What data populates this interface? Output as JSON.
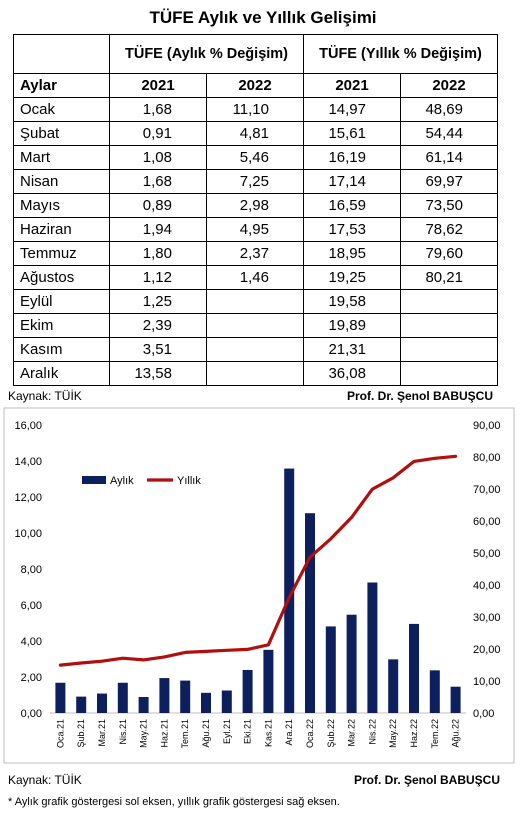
{
  "table": {
    "title": "TÜFE Aylık ve Yıllık Gelişimi",
    "group_monthly": "TÜFE (Aylık % Değişim)",
    "group_annual": "TÜFE (Yıllık % Değişim)",
    "col_months": "Aylar",
    "years": [
      "2021",
      "2022",
      "2021",
      "2022"
    ],
    "rows": [
      {
        "month": "Ocak",
        "m2021": "1,68",
        "m2022": "11,10",
        "y2021": "14,97",
        "y2022": "48,69"
      },
      {
        "month": "Şubat",
        "m2021": "0,91",
        "m2022": "4,81",
        "y2021": "15,61",
        "y2022": "54,44"
      },
      {
        "month": "Mart",
        "m2021": "1,08",
        "m2022": "5,46",
        "y2021": "16,19",
        "y2022": "61,14"
      },
      {
        "month": "Nisan",
        "m2021": "1,68",
        "m2022": "7,25",
        "y2021": "17,14",
        "y2022": "69,97"
      },
      {
        "month": "Mayıs",
        "m2021": "0,89",
        "m2022": "2,98",
        "y2021": "16,59",
        "y2022": "73,50"
      },
      {
        "month": "Haziran",
        "m2021": "1,94",
        "m2022": "4,95",
        "y2021": "17,53",
        "y2022": "78,62"
      },
      {
        "month": "Temmuz",
        "m2021": "1,80",
        "m2022": "2,37",
        "y2021": "18,95",
        "y2022": "79,60"
      },
      {
        "month": "Ağustos",
        "m2021": "1,12",
        "m2022": "1,46",
        "y2021": "19,25",
        "y2022": "80,21"
      },
      {
        "month": "Eylül",
        "m2021": "1,25",
        "m2022": "",
        "y2021": "19,58",
        "y2022": ""
      },
      {
        "month": "Ekim",
        "m2021": "2,39",
        "m2022": "",
        "y2021": "19,89",
        "y2022": ""
      },
      {
        "month": "Kasım",
        "m2021": "3,51",
        "m2022": "",
        "y2021": "21,31",
        "y2022": ""
      },
      {
        "month": "Aralık",
        "m2021": "13,58",
        "m2022": "",
        "y2021": "36,08",
        "y2022": ""
      }
    ]
  },
  "source_top": {
    "left": "Kaynak: TÜİK",
    "right": "Prof. Dr. Şenol BABUŞCU"
  },
  "source_bottom": {
    "left": "Kaynak: TÜİK",
    "right": "Prof. Dr. Şenol BABUŞCU"
  },
  "footnote": "* Aylık grafik göstergesi sol eksen, yıllık grafik göstergesi sağ eksen.",
  "chart_data": {
    "type": "bar",
    "categories": [
      "Oca.21",
      "Şub.21",
      "Mar.21",
      "Nis.21",
      "May.21",
      "Haz.21",
      "Tem.21",
      "Ağu.21",
      "Eyl.21",
      "Eki.21",
      "Kas.21",
      "Ara.21",
      "Oca.22",
      "Şub.22",
      "Mar.22",
      "Nis.22",
      "May.22",
      "Haz.22",
      "Tem.22",
      "Ağu.22"
    ],
    "series": [
      {
        "name": "Aylık",
        "type": "bar",
        "axis": "left",
        "color": "#0d1f5c",
        "values": [
          1.68,
          0.91,
          1.08,
          1.68,
          0.89,
          1.94,
          1.8,
          1.12,
          1.25,
          2.39,
          3.51,
          13.58,
          11.1,
          4.81,
          5.46,
          7.25,
          2.98,
          4.95,
          2.37,
          1.46
        ]
      },
      {
        "name": "Yıllık",
        "type": "line",
        "axis": "right",
        "color": "#b20e0e",
        "values": [
          14.97,
          15.61,
          16.19,
          17.14,
          16.59,
          17.53,
          18.95,
          19.25,
          19.58,
          19.89,
          21.31,
          36.08,
          48.69,
          54.44,
          61.14,
          69.97,
          73.5,
          78.62,
          79.6,
          80.21
        ]
      }
    ],
    "ylim_left": [
      0,
      16
    ],
    "ylim_right": [
      0,
      90
    ],
    "yticks_left": [
      "0,00",
      "2,00",
      "4,00",
      "6,00",
      "8,00",
      "10,00",
      "12,00",
      "14,00",
      "16,00"
    ],
    "yticks_right": [
      "0,00",
      "10,00",
      "20,00",
      "30,00",
      "40,00",
      "50,00",
      "60,00",
      "70,00",
      "80,00",
      "90,00"
    ],
    "legend_position": "top-left inside",
    "grid": false
  }
}
